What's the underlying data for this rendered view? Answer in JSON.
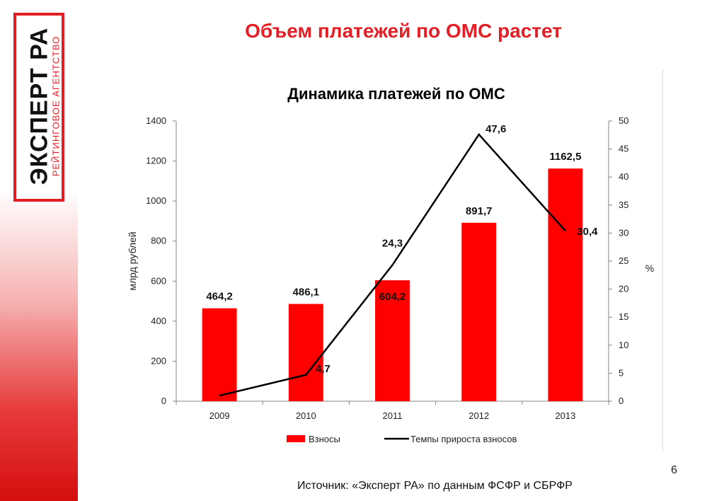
{
  "slide": {
    "title": "Объем платежей по ОМС растет",
    "page_number": "6",
    "source": "Источник: «Эксперт РА» по данным ФСФР и СБРФР"
  },
  "logo": {
    "main_text": "ЭКСПЕРТ РА",
    "sub_text": "РЕЙТИНГОВОЕ АГЕНТСТВО",
    "brand_color": "#e31e24"
  },
  "chart_data": {
    "type": "bar",
    "title": "Динамика платежей по ОМС",
    "categories": [
      "2009",
      "2010",
      "2011",
      "2012",
      "2013"
    ],
    "xlabel": "",
    "ylabel": "млрд рублей",
    "ylabel_right": "%",
    "ylim": [
      0,
      1400
    ],
    "y_ticks": [
      "0",
      "200",
      "400",
      "600",
      "800",
      "1000",
      "1200",
      "1400"
    ],
    "ylim_right": [
      0,
      50
    ],
    "y_ticks_right": [
      "0",
      "5",
      "10",
      "15",
      "20",
      "25",
      "30",
      "35",
      "40",
      "45",
      "50"
    ],
    "grid": false,
    "legend_position": "bottom",
    "series": [
      {
        "name": "Взносы",
        "type": "bar",
        "axis": "left",
        "color": "#ff0000",
        "values": [
          464.2,
          486.1,
          604.2,
          891.7,
          1162.5
        ],
        "labels": [
          "464,2",
          "486,1",
          "604,2",
          "891,7",
          "1162,5"
        ]
      },
      {
        "name": "Темпы прироста взносов",
        "type": "line",
        "axis": "right",
        "color": "#000000",
        "values": [
          1.0,
          4.7,
          24.3,
          47.6,
          30.4
        ],
        "labels": [
          "",
          "4,7",
          "24,3",
          "47,6",
          "30,4"
        ]
      }
    ]
  }
}
